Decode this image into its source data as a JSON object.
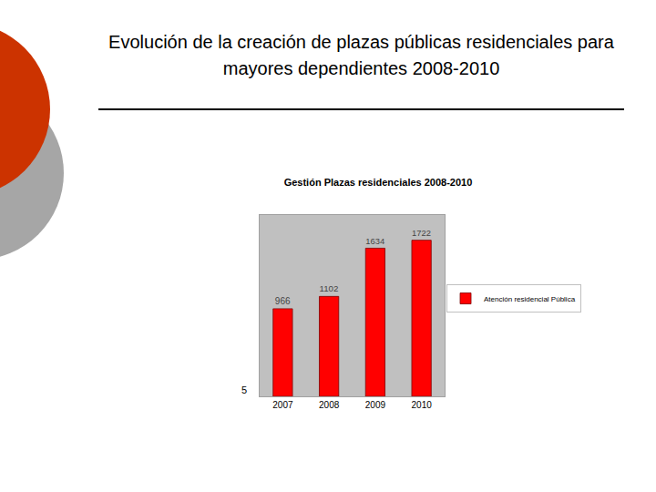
{
  "slide": {
    "title": "Evolución de la creación de plazas públicas residenciales para mayores dependientes 2008-2010"
  },
  "chart_data": {
    "type": "bar",
    "title": "Gestión Plazas residenciales 2008-2010",
    "categories": [
      "2007",
      "2008",
      "2009",
      "2010"
    ],
    "series": [
      {
        "name": "Atención residencial Pública",
        "color": "#ff0000",
        "values": [
          966,
          1102,
          1634,
          1722
        ]
      }
    ],
    "ylim": [
      0,
      2000
    ],
    "grid": false,
    "legend": "right",
    "data_labels": true,
    "tick_labels": "x",
    "annotations": [
      {
        "text": "5"
      }
    ]
  }
}
